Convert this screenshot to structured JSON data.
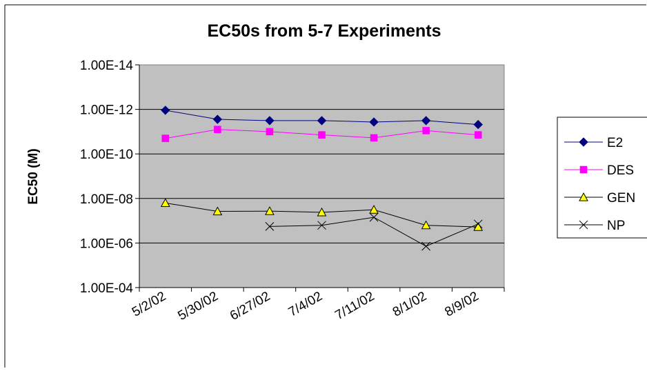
{
  "chart_data": {
    "type": "line",
    "title": "EC50s from 5-7 Experiments",
    "xlabel": "",
    "ylabel": "EC50 (M)",
    "scale": "log",
    "y_inverted": true,
    "ylim": [
      0.0001,
      1e-14
    ],
    "grid": true,
    "legend_position": "right",
    "categories": [
      "5/2/02",
      "5/30/02",
      "6/27/02",
      "7/4/02",
      "7/11/02",
      "8/1/02",
      "8/9/02"
    ],
    "y_ticks": [
      {
        "value": 1e-14,
        "label": "1.00E-14"
      },
      {
        "value": 1e-12,
        "label": "1.00E-12"
      },
      {
        "value": 1e-10,
        "label": "1.00E-10"
      },
      {
        "value": 1e-08,
        "label": "1.00E-08"
      },
      {
        "value": 1e-06,
        "label": "1.00E-06"
      },
      {
        "value": 0.0001,
        "label": "1.00E-04"
      }
    ],
    "series": [
      {
        "name": "E2",
        "color": "#000080",
        "marker": "diamond",
        "values": [
          1.1e-12,
          2.8e-12,
          3.2e-12,
          3.2e-12,
          3.7e-12,
          3.2e-12,
          4.8e-12
        ]
      },
      {
        "name": "DES",
        "color": "#ff00ff",
        "marker": "square",
        "values": [
          2e-11,
          8e-12,
          1e-11,
          1.4e-11,
          1.9e-11,
          9e-12,
          1.4e-11
        ]
      },
      {
        "name": "GEN",
        "color": "#000000",
        "marker": "triangle",
        "values": [
          1.6e-08,
          3.8e-08,
          3.7e-08,
          4.2e-08,
          3.2e-08,
          1.6e-07,
          1.9e-07
        ]
      },
      {
        "name": "NP",
        "color": "#000000",
        "marker": "x",
        "values": [
          null,
          null,
          1.8e-07,
          1.6e-07,
          7e-08,
          1.4e-06,
          1.4e-07
        ]
      }
    ]
  }
}
